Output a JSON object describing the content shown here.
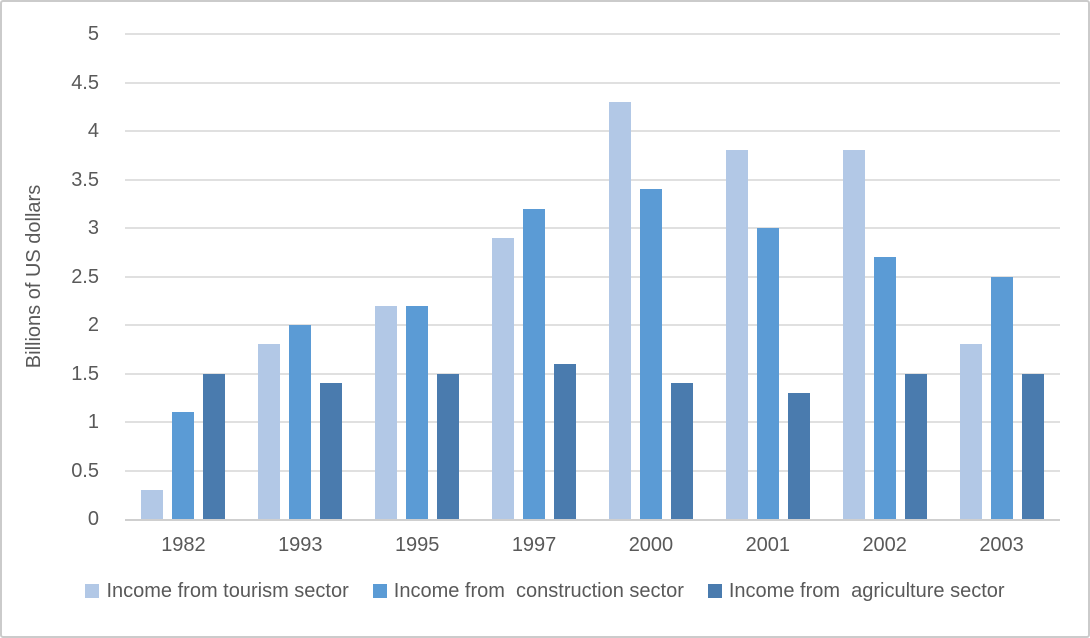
{
  "chart_data": {
    "type": "bar",
    "title": "",
    "xlabel": "",
    "ylabel": "Billions of US dollars",
    "ylim": [
      0,
      5
    ],
    "ytick_step": 0.5,
    "yticks": [
      0,
      0.5,
      1,
      1.5,
      2,
      2.5,
      3,
      3.5,
      4,
      4.5,
      5
    ],
    "grid": true,
    "legend_position": "bottom",
    "categories": [
      "1982",
      "1993",
      "1995",
      "1997",
      "2000",
      "2001",
      "2002",
      "2003"
    ],
    "series": [
      {
        "name": "Income from tourism sector",
        "color": "#b2c8e6",
        "values": [
          0.3,
          1.8,
          2.2,
          2.9,
          4.3,
          3.8,
          3.8,
          1.8
        ]
      },
      {
        "name": "Income from  construction sector",
        "color": "#5b9bd5",
        "values": [
          1.1,
          2.0,
          2.2,
          3.2,
          3.4,
          3.0,
          2.7,
          2.5
        ]
      },
      {
        "name": "Income from  agriculture sector",
        "color": "#4a7bae",
        "values": [
          1.5,
          1.4,
          1.5,
          1.6,
          1.4,
          1.3,
          1.5,
          1.5
        ]
      }
    ],
    "colors": {
      "gridline": "#e0e0e0",
      "axis_line": "#cfcfcf",
      "text": "#595959",
      "frame_border": "#cbcbcb",
      "background": "#ffffff"
    }
  }
}
